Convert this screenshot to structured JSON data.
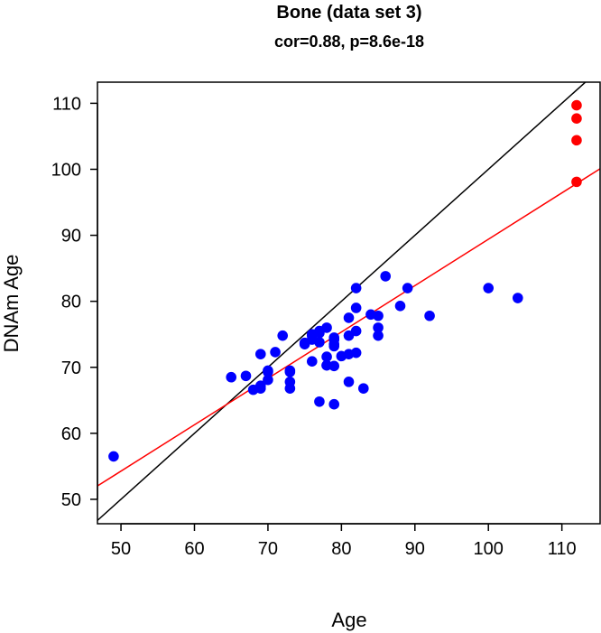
{
  "chart_data": {
    "type": "scatter",
    "title": "Bone (data set 3)",
    "subtitle": "cor=0.88, p=8.6e-18",
    "xlabel": "Age",
    "ylabel": "DNAm Age",
    "xlim": [
      46.8,
      115.2
    ],
    "ylim": [
      46.3,
      113.2
    ],
    "xticks": [
      50,
      60,
      70,
      80,
      90,
      100,
      110
    ],
    "yticks": [
      50,
      60,
      70,
      80,
      90,
      100,
      110
    ],
    "grid": false,
    "colors": {
      "main_series": "#0000ff",
      "highlight_series": "#ff0000",
      "identity_line": "#000000",
      "regression_line": "#ff0000"
    },
    "reference_lines": [
      {
        "name": "identity",
        "slope": 1,
        "intercept": 0
      },
      {
        "name": "regression",
        "slope": 0.7026,
        "intercept": 19.14
      }
    ],
    "series": [
      {
        "name": "main",
        "x": [
          49,
          65,
          67,
          68,
          69,
          69,
          69,
          70,
          70,
          70,
          71,
          72,
          73,
          73,
          73,
          73,
          75,
          75,
          76,
          76,
          76,
          76,
          77,
          77,
          77,
          77,
          78,
          78,
          78,
          78,
          79,
          79,
          79,
          79,
          79,
          79,
          80,
          81,
          81,
          81,
          81,
          82,
          82,
          82,
          82,
          83,
          84,
          85,
          85,
          85,
          86,
          88,
          89,
          92,
          100,
          104
        ],
        "y": [
          56.5,
          68.5,
          68.7,
          66.6,
          66.8,
          67.2,
          72.0,
          68.1,
          69.5,
          69.3,
          72.3,
          74.8,
          66.8,
          67.8,
          69.3,
          69.5,
          73.5,
          73.7,
          74.2,
          74.8,
          75.0,
          70.9,
          73.8,
          75.2,
          75.5,
          64.8,
          76.0,
          71.6,
          70.3,
          70.3,
          70.2,
          73.5,
          74.2,
          74.5,
          73.2,
          64.4,
          71.7,
          77.5,
          74.8,
          72.0,
          67.8,
          82.0,
          79.0,
          75.5,
          72.2,
          66.8,
          78.0,
          77.8,
          76.0,
          74.8,
          83.8,
          79.3,
          82.0,
          77.8,
          82.0,
          80.5
        ]
      },
      {
        "name": "highlight",
        "x": [
          112,
          112,
          112,
          112
        ],
        "y": [
          109.7,
          107.7,
          104.4,
          98.1
        ]
      }
    ]
  }
}
